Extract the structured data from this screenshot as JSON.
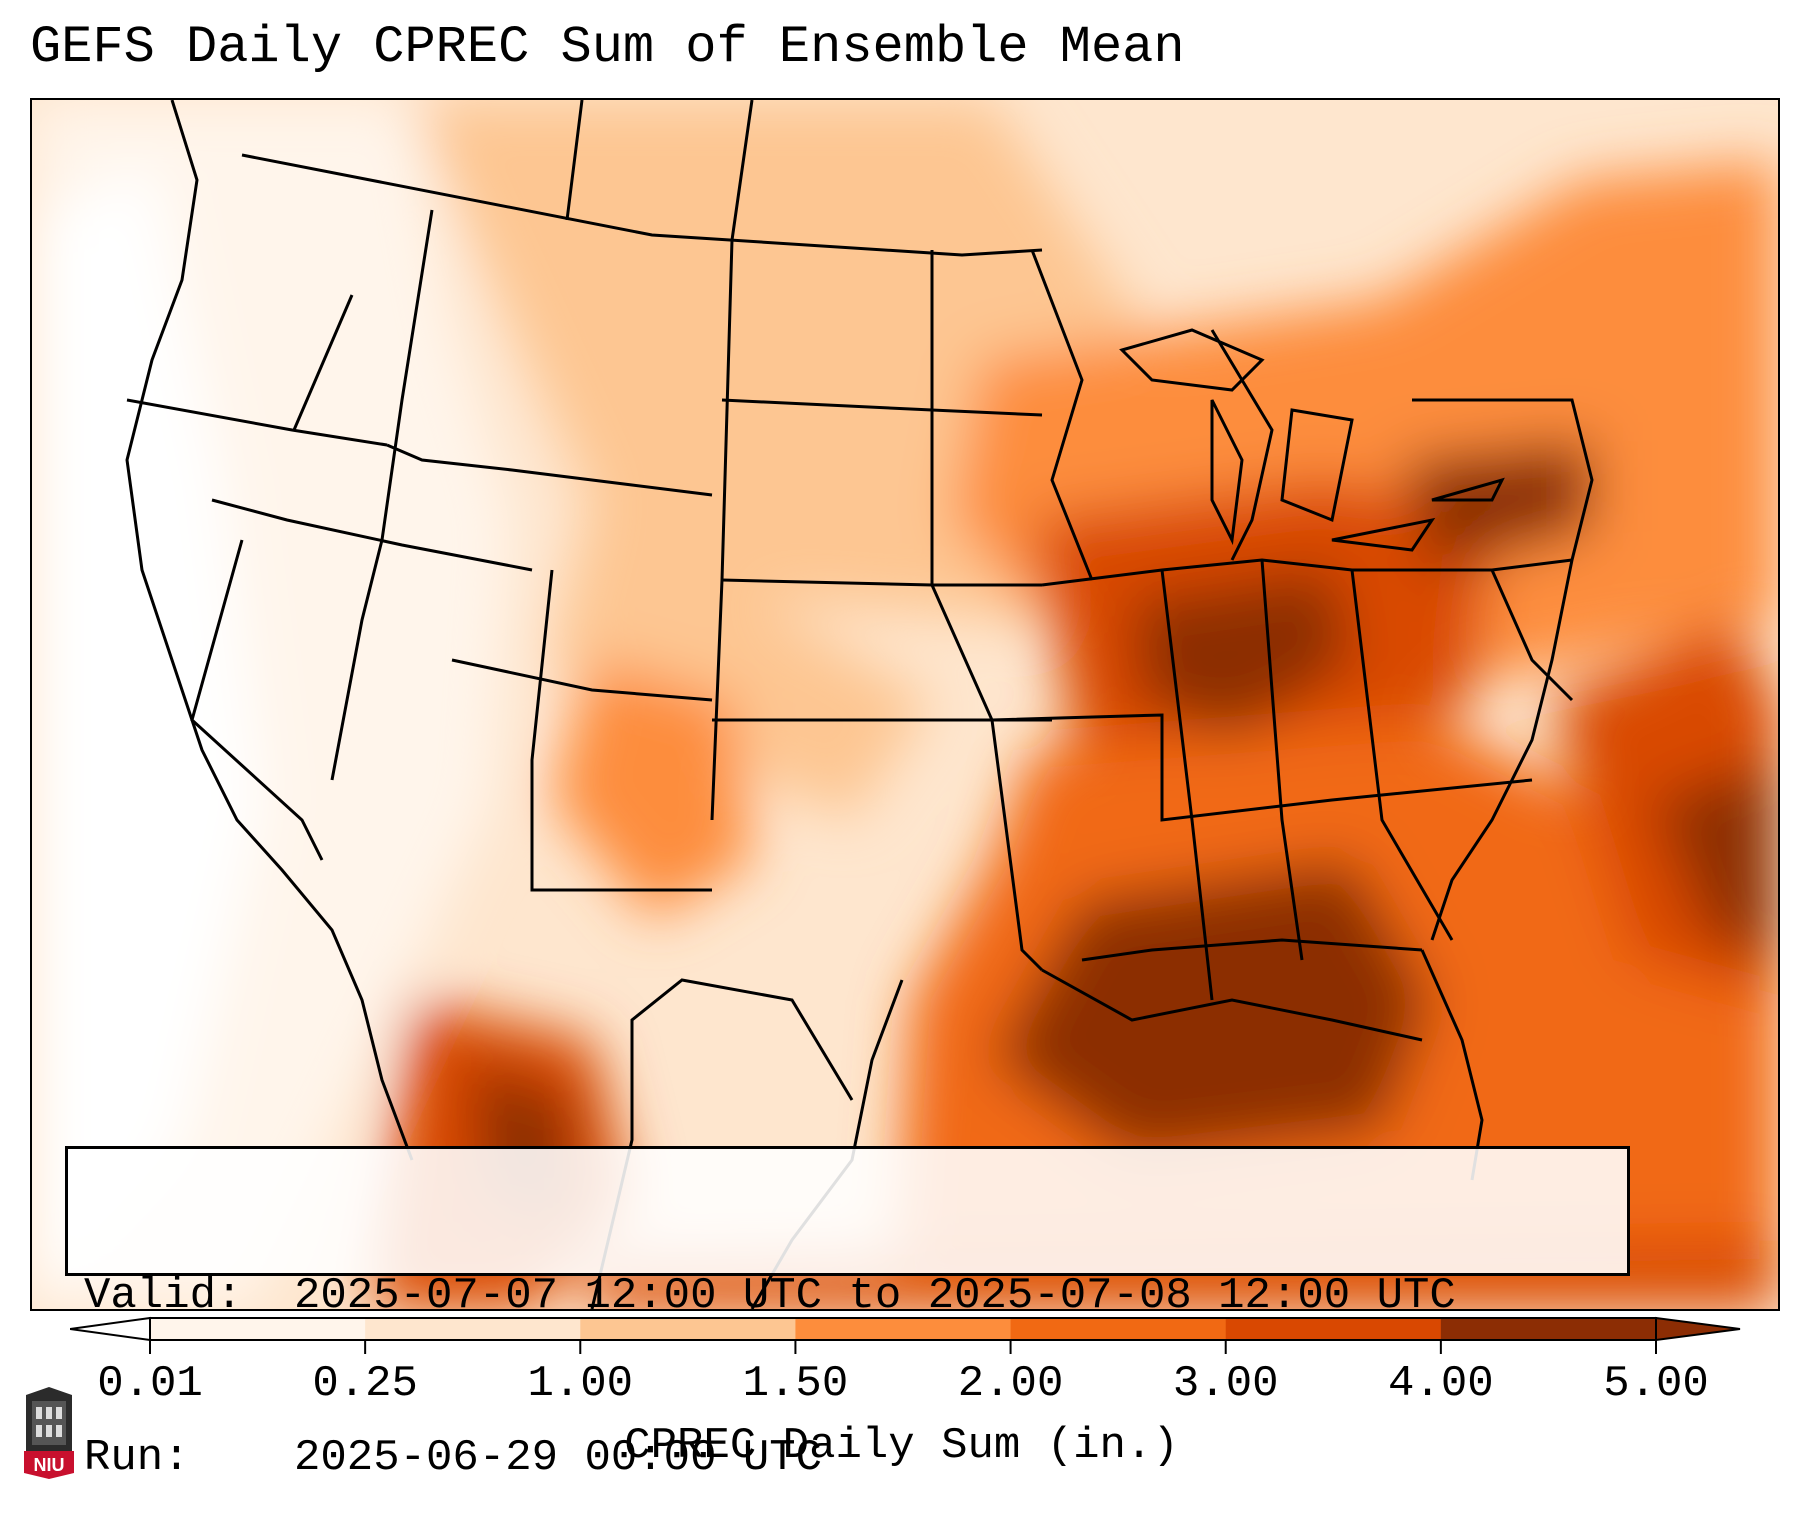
{
  "title": "GEFS Daily CPREC Sum of Ensemble Mean",
  "info": {
    "valid_label": "Valid:",
    "valid_value": "2025-07-07 12:00 UTC to 2025-07-08 12:00 UTC",
    "run_label": "Run:",
    "run_value": "2025-06-29 00:00 UTC"
  },
  "colorbar": {
    "title": "CPREC Daily Sum (in.)",
    "ticks": [
      "0.01",
      "0.25",
      "1.00",
      "1.50",
      "2.00",
      "3.00",
      "4.00",
      "5.00"
    ],
    "colors": [
      "#ffffff",
      "#fff5eb",
      "#fee6ce",
      "#fdc692",
      "#fd8d3c",
      "#f16913",
      "#d94801",
      "#8c2d04"
    ],
    "extend": "both"
  },
  "logo": {
    "text": "NIU",
    "icon": "niu-logo-icon"
  },
  "map": {
    "region": "Contiguous United States, northern Mexico, Gulf of Mexico",
    "units": "in."
  }
}
